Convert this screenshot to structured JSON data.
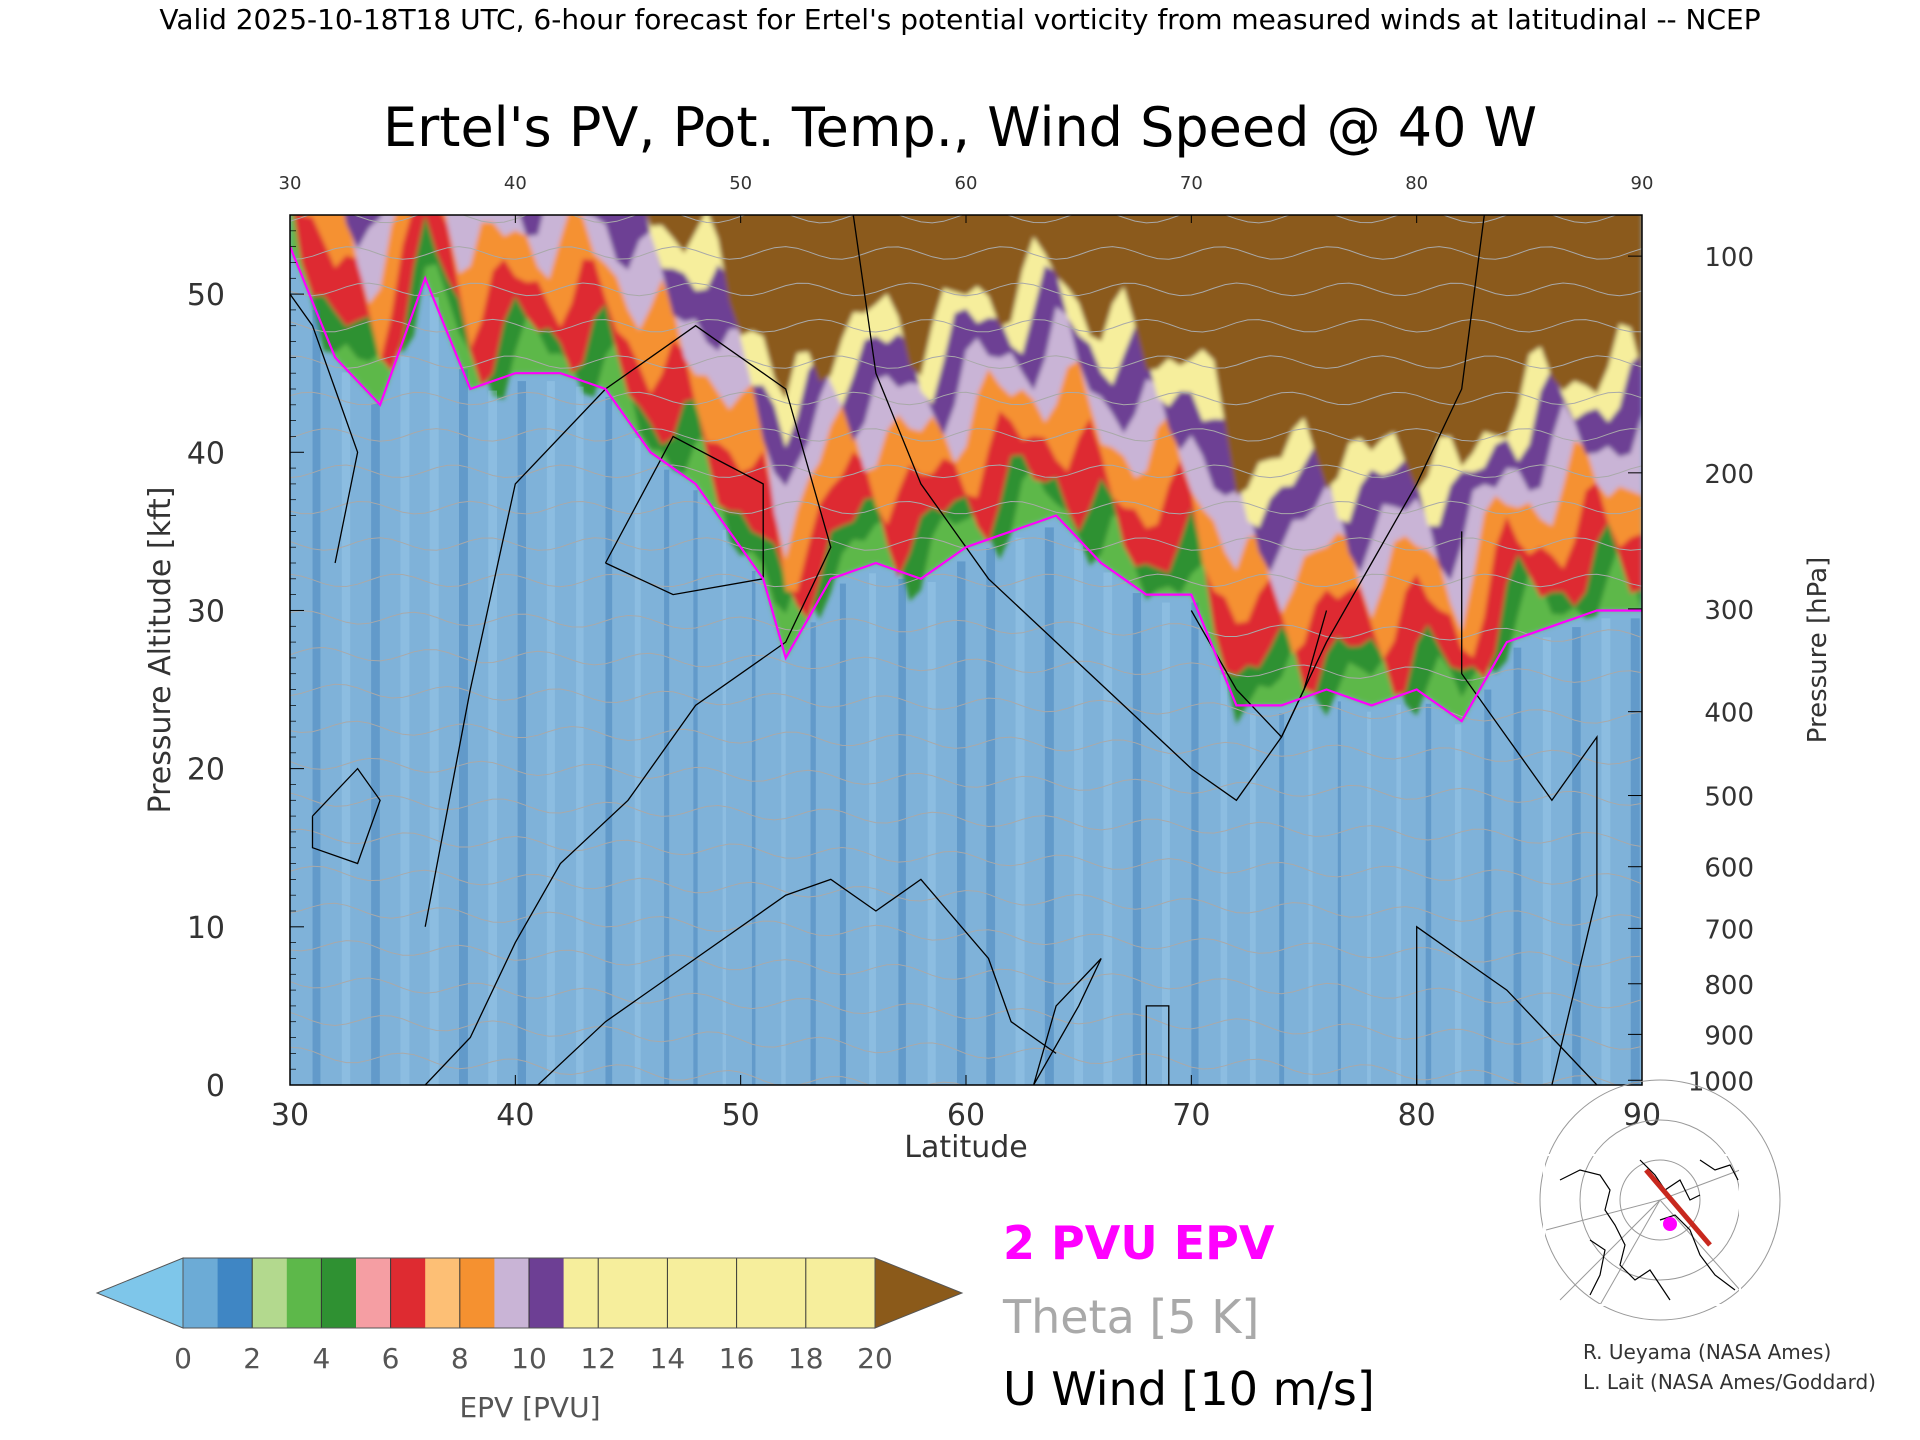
{
  "header": {
    "text": "Valid 2025-10-18T18 UTC, 6-hour forecast for Ertel's potential vorticity from measured winds at latitudinal -- NCEP"
  },
  "chart_data": {
    "type": "heatmap",
    "title": "Ertel's PV, Pot. Temp., Wind Speed @ 40 W",
    "xlabel": "Latitude",
    "ylabel": "Pressure Altitude [kft]",
    "ylabel_right": "Pressure [hPa]",
    "xlim": [
      30,
      90
    ],
    "ylim": [
      0,
      55
    ],
    "x_ticks": [
      30,
      40,
      50,
      60,
      70,
      80,
      90
    ],
    "y_ticks": [
      0,
      10,
      20,
      30,
      40,
      50
    ],
    "pressure_ticks": [
      {
        "hPa": 100,
        "kft": 52.4
      },
      {
        "hPa": 200,
        "kft": 38.7
      },
      {
        "hPa": 300,
        "kft": 30.1
      },
      {
        "hPa": 400,
        "kft": 23.6
      },
      {
        "hPa": 500,
        "kft": 18.3
      },
      {
        "hPa": 600,
        "kft": 13.8
      },
      {
        "hPa": 700,
        "kft": 9.9
      },
      {
        "hPa": 800,
        "kft": 6.4
      },
      {
        "hPa": 900,
        "kft": 3.2
      },
      {
        "hPa": 1000,
        "kft": 0.3
      }
    ],
    "epv_tropopause_2pvu_kft": {
      "lat": [
        30,
        32,
        34,
        36,
        38,
        40,
        42,
        44,
        46,
        48,
        50,
        51,
        52,
        54,
        56,
        58,
        60,
        62,
        64,
        66,
        68,
        70,
        72,
        74,
        76,
        78,
        80,
        82,
        84,
        86,
        88,
        90
      ],
      "alt": [
        53,
        46,
        43,
        51,
        44,
        45,
        45,
        44,
        40,
        38,
        34,
        32,
        27,
        32,
        33,
        32,
        34,
        35,
        36,
        33,
        31,
        31,
        24,
        24,
        25,
        24,
        25,
        23,
        28,
        29,
        30,
        30
      ]
    },
    "epv_colorbar": {
      "label": "EPV [PVU]",
      "ticks": [
        0,
        2,
        4,
        6,
        8,
        10,
        12,
        14,
        16,
        18,
        20
      ],
      "colors": [
        "#7ec6ea",
        "#6cabd6",
        "#3f86c4",
        "#b3d98e",
        "#5db84a",
        "#2f9132",
        "#f59ea3",
        "#de2b31",
        "#fdbf75",
        "#f59130",
        "#c9b4d6",
        "#6d3f94",
        "#f6ee9c",
        "#8b5a1a"
      ]
    },
    "legend": [
      {
        "label": "2 PVU EPV",
        "color": "#ff00ff"
      },
      {
        "label": "Theta [5 K]",
        "color": "#a9a9a9"
      },
      {
        "label": "U Wind [10 m/s]",
        "color": "#000000"
      }
    ],
    "inset_map": {
      "label": "cross-section track at 40 W",
      "track_color": "#c8281e",
      "marker_color": "#ff00ff"
    },
    "credits": [
      "R. Ueyama (NASA Ames)",
      "L. Lait (NASA Ames/Goddard)"
    ]
  }
}
